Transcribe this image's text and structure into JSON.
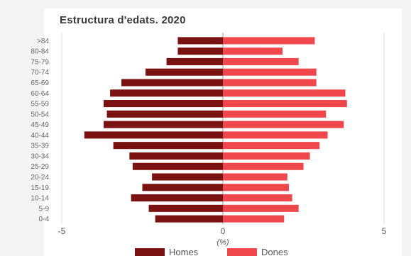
{
  "chart_data": {
    "type": "bar",
    "orientation": "horizontal",
    "title": "Estructura d'edats. 2020",
    "xlabel": "(%)",
    "xlim": [
      -5,
      5
    ],
    "xticks": [
      "-5",
      "0",
      "5"
    ],
    "grid": true,
    "legend_position": "bottom",
    "categories": [
      ">84",
      "80-84",
      "75-79",
      "70-74",
      "65-69",
      "60-64",
      "55-59",
      "50-54",
      "45-49",
      "40-44",
      "35-39",
      "30-34",
      "25-29",
      "20-24",
      "15-19",
      "10-14",
      "5-9",
      "0-4"
    ],
    "series": [
      {
        "name": "Homes",
        "color": "#7a1212",
        "values": [
          -1.4,
          -1.4,
          -1.75,
          -2.4,
          -3.15,
          -3.5,
          -3.7,
          -3.6,
          -3.7,
          -4.3,
          -3.4,
          -2.9,
          -2.8,
          -2.2,
          -2.5,
          -2.85,
          -2.3,
          -2.1
        ]
      },
      {
        "name": "Dones",
        "color": "#f0474c",
        "values": [
          2.85,
          1.85,
          2.35,
          2.9,
          2.9,
          3.8,
          3.85,
          3.2,
          3.75,
          3.25,
          3.0,
          2.7,
          2.5,
          2.0,
          2.05,
          2.15,
          2.35,
          1.9
        ]
      }
    ]
  }
}
